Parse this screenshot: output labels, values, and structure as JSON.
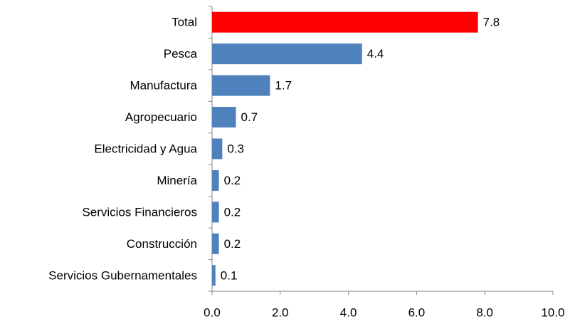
{
  "chart_data": {
    "type": "barh",
    "categories": [
      "Total",
      "Pesca",
      "Manufactura",
      "Agropecuario",
      "Electricidad y Agua",
      "Minería",
      "Servicios Financieros",
      "Construcción",
      "Servicios Gubernamentales"
    ],
    "values": [
      7.8,
      4.4,
      1.7,
      0.7,
      0.3,
      0.2,
      0.2,
      0.2,
      0.1
    ],
    "colors": [
      "#ff0000",
      "#4f81bd",
      "#4f81bd",
      "#4f81bd",
      "#4f81bd",
      "#4f81bd",
      "#4f81bd",
      "#4f81bd",
      "#4f81bd"
    ],
    "xlim": [
      0,
      10
    ],
    "xticks": [
      {
        "value": 0,
        "label": "0.0"
      },
      {
        "value": 2,
        "label": "2.0"
      },
      {
        "value": 4,
        "label": "4.0"
      },
      {
        "value": 6,
        "label": "6.0"
      },
      {
        "value": 8,
        "label": "8.0"
      },
      {
        "value": 10,
        "label": "10.0"
      }
    ]
  }
}
